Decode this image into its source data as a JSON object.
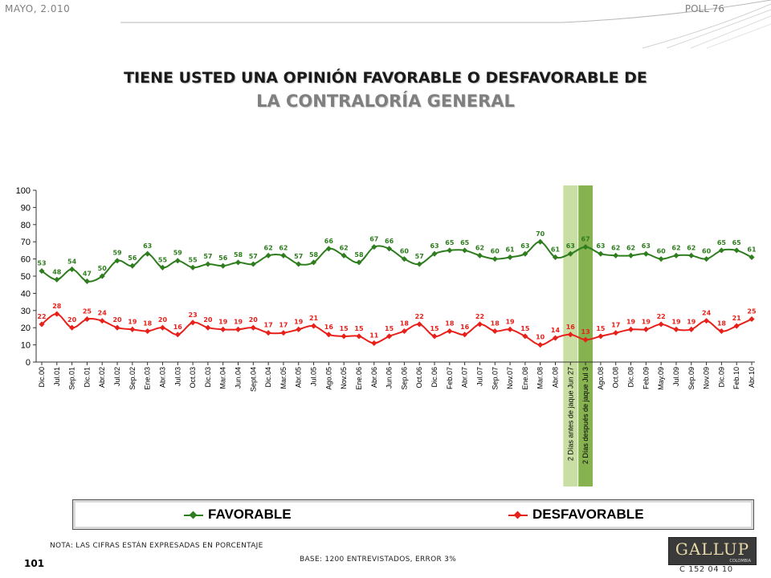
{
  "header": {
    "date": "MAYO, 2.010",
    "poll": "POLL 76"
  },
  "title": {
    "line1": "TIENE USTED UNA OPINIÓN FAVORABLE O DESFAVORABLE DE",
    "line2": "LA CONTRALORÍA GENERAL"
  },
  "legend": {
    "favorable": "FAVORABLE",
    "desfavorable": "DESFAVORABLE"
  },
  "footer": {
    "note": "NOTA: LAS CIFRAS ESTÁN EXPRESADAS EN PORCENTAJE",
    "page": "101",
    "base": "BASE: 1200 ENTREVISTADOS, ERROR 3%",
    "logo": "GALLUP",
    "logo_sub": "COLOMBIA",
    "code": "C 152 04 10"
  },
  "colors": {
    "favorable": "#2e7d1e",
    "desfavorable": "#e8201a",
    "band_light": "#c9dea3",
    "band_dark": "#86b24f"
  },
  "chart_data": {
    "type": "line",
    "ylim": [
      0,
      100
    ],
    "yticks": [
      0,
      10,
      20,
      30,
      40,
      50,
      60,
      70,
      80,
      90,
      100
    ],
    "grid": false,
    "legend_position": "bottom",
    "categories": [
      "Dic.00",
      "Jul.01",
      "Sep.01",
      "Dic.01",
      "Abr.02",
      "Jul.02",
      "Sep.02",
      "Ene.03",
      "Abr.03",
      "Jul.03",
      "Oct.03",
      "Dic.03",
      "Mar.04",
      "Jun.04",
      "Sept.04",
      "Dic.04",
      "Mar.05",
      "Abr.05",
      "Jul.05",
      "Ago.05",
      "Nov.05",
      "Ene.06",
      "Abr.06",
      "Jun.06",
      "Sep.06",
      "Oct.06",
      "Dic.06",
      "Feb.07",
      "Abr.07",
      "Jul.07",
      "Sep.07",
      "Nov.07",
      "Ene.08",
      "Mar.08",
      "Abr.08",
      "2 Días antes de jaque Jun 27",
      "2 Días después de jaque Jul 3",
      "Ago.08",
      "Oct.08",
      "Dic.08",
      "Feb.09",
      "May.09",
      "Jul.09",
      "Sep.09",
      "Nov.09",
      "Dic.09",
      "Feb.10",
      "Abr.10"
    ],
    "highlight_categories": [
      "2 Días antes de jaque Jun 27",
      "2 Días después de jaque Jul 3"
    ],
    "series": [
      {
        "name": "FAVORABLE",
        "values": [
          53,
          48,
          54,
          47,
          50,
          59,
          56,
          63,
          55,
          59,
          55,
          57,
          56,
          58,
          57,
          62,
          62,
          57,
          58,
          66,
          62,
          58,
          67,
          66,
          60,
          57,
          63,
          65,
          65,
          62,
          60,
          61,
          63,
          70,
          61,
          63,
          67,
          63,
          62,
          62,
          63,
          60,
          62,
          62,
          60,
          65,
          65,
          61
        ]
      },
      {
        "name": "DESFAVORABLE",
        "values": [
          22,
          28,
          20,
          25,
          24,
          20,
          19,
          18,
          20,
          16,
          23,
          20,
          19,
          19,
          20,
          17,
          17,
          19,
          21,
          16,
          15,
          15,
          11,
          15,
          18,
          22,
          15,
          18,
          16,
          22,
          18,
          19,
          15,
          10,
          14,
          16,
          13,
          15,
          17,
          19,
          19,
          22,
          19,
          19,
          24,
          18,
          21,
          25
        ]
      }
    ]
  }
}
